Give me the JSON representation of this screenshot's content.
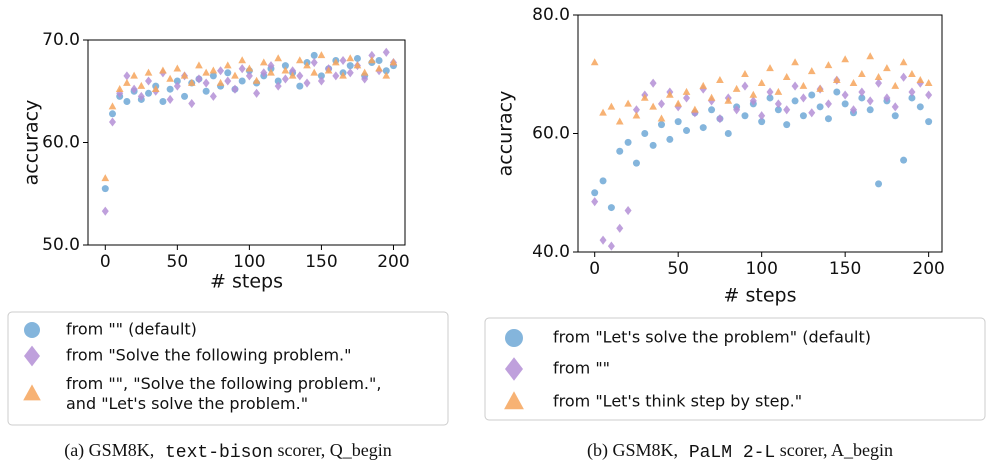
{
  "chart_data": [
    {
      "type": "scatter",
      "ylabel": "accuracy",
      "xlabel": "# steps",
      "caption": {
        "prefix": "(a) GSM8K,",
        "model": "text-bison",
        "suffix": "scorer, Q_begin"
      },
      "xlim": [
        -12,
        208
      ],
      "ylim": [
        50,
        70
      ],
      "xticks": [
        0,
        50,
        100,
        150,
        200
      ],
      "yticks": [
        {
          "value": 50,
          "label": "50.0"
        },
        {
          "value": 60,
          "label": "60.0"
        },
        {
          "value": 70,
          "label": "70.0"
        }
      ],
      "x": [
        0,
        5,
        10,
        15,
        20,
        25,
        30,
        35,
        40,
        45,
        50,
        55,
        60,
        65,
        70,
        75,
        80,
        85,
        90,
        95,
        100,
        105,
        110,
        115,
        120,
        125,
        130,
        135,
        140,
        145,
        150,
        155,
        160,
        165,
        170,
        175,
        180,
        185,
        190,
        195,
        200
      ],
      "series": [
        {
          "name": "from \"\" (default)",
          "color": "#6fa8d6",
          "marker": "circle",
          "values": [
            55.5,
            62.8,
            64.5,
            64.0,
            65.0,
            64.2,
            64.8,
            65.5,
            64.0,
            65.2,
            66.0,
            64.5,
            65.8,
            66.2,
            65.0,
            66.5,
            65.5,
            66.8,
            65.2,
            66.0,
            67.0,
            65.8,
            66.5,
            67.2,
            66.0,
            67.5,
            66.8,
            65.5,
            67.8,
            68.5,
            66.5,
            67.2,
            68.0,
            66.8,
            67.5,
            68.2,
            66.5,
            67.8,
            68.0,
            67.0,
            67.5
          ]
        },
        {
          "name": "from \"Solve the following problem.\"",
          "color": "#b48fd6",
          "marker": "diamond",
          "values": [
            53.3,
            62.0,
            64.8,
            66.5,
            65.2,
            64.5,
            66.0,
            65.0,
            66.8,
            64.2,
            65.5,
            66.5,
            63.8,
            66.2,
            65.8,
            64.5,
            67.0,
            66.0,
            65.2,
            67.2,
            66.5,
            64.8,
            66.8,
            67.5,
            65.5,
            66.2,
            67.0,
            66.5,
            65.8,
            67.8,
            66.0,
            67.2,
            66.5,
            68.0,
            66.8,
            67.5,
            66.2,
            68.5,
            67.0,
            68.8,
            67.8
          ]
        },
        {
          "name": "from \"\", \"Solve the following problem.\",\nand \"Let's solve the problem.\"",
          "color": "#f6a45c",
          "marker": "triangle",
          "values": [
            56.5,
            63.5,
            65.2,
            65.8,
            66.5,
            65.5,
            66.8,
            65.2,
            67.0,
            66.2,
            67.2,
            66.5,
            65.8,
            67.5,
            66.8,
            67.0,
            65.8,
            67.5,
            66.5,
            68.0,
            67.2,
            66.0,
            67.8,
            66.8,
            68.2,
            67.0,
            66.5,
            68.0,
            67.5,
            66.8,
            68.5,
            67.0,
            67.8,
            66.5,
            68.2,
            67.5,
            66.8,
            68.0,
            67.2,
            66.5,
            67.8
          ]
        }
      ]
    },
    {
      "type": "scatter",
      "ylabel": "accuracy",
      "xlabel": "# steps",
      "caption": {
        "prefix": "(b) GSM8K,",
        "model": "PaLM 2-L",
        "suffix": "scorer, A_begin"
      },
      "xlim": [
        -10,
        208
      ],
      "ylim": [
        40,
        80
      ],
      "xticks": [
        0,
        50,
        100,
        150,
        200
      ],
      "yticks": [
        {
          "value": 40,
          "label": "40.0"
        },
        {
          "value": 60,
          "label": "60.0"
        },
        {
          "value": 80,
          "label": "80.0"
        }
      ],
      "x": [
        0,
        5,
        10,
        15,
        20,
        25,
        30,
        35,
        40,
        45,
        50,
        55,
        60,
        65,
        70,
        75,
        80,
        85,
        90,
        95,
        100,
        105,
        110,
        115,
        120,
        125,
        130,
        135,
        140,
        145,
        150,
        155,
        160,
        165,
        170,
        175,
        180,
        185,
        190,
        195,
        200
      ],
      "series": [
        {
          "name": "from \"Let's solve the problem\" (default)",
          "color": "#6fa8d6",
          "marker": "circle",
          "values": [
            50,
            52,
            47.5,
            57,
            58.5,
            55,
            60,
            58,
            61.5,
            59,
            62,
            60.5,
            63.5,
            61,
            64,
            62.5,
            60,
            64.5,
            63,
            65,
            62,
            66,
            64,
            61.5,
            65.5,
            63,
            66.5,
            64.5,
            62.5,
            67,
            65,
            63.5,
            66,
            64,
            51.5,
            65.5,
            63,
            55.5,
            66,
            64.5,
            62
          ]
        },
        {
          "name": "from \"\"",
          "color": "#b48fd6",
          "marker": "diamond",
          "values": [
            48.5,
            42,
            41,
            44,
            47,
            64,
            66.5,
            68.5,
            65,
            67,
            64.5,
            66,
            63.5,
            67.5,
            65.5,
            62.5,
            66,
            64,
            68,
            65.5,
            63,
            67,
            65,
            64,
            68,
            66,
            63.5,
            67.5,
            65,
            69,
            66.5,
            64,
            67,
            65.5,
            68.5,
            66,
            64.5,
            69.5,
            67,
            68.5,
            66.5
          ]
        },
        {
          "name": "from \"Let's think step by step.\"",
          "color": "#f6a45c",
          "marker": "triangle",
          "values": [
            72,
            63.5,
            64.5,
            62,
            65,
            63,
            66,
            64.5,
            62.5,
            66.5,
            65,
            67,
            64,
            68,
            66,
            69,
            65.5,
            67.5,
            70,
            66.5,
            68.5,
            71,
            67,
            69.5,
            72,
            68,
            70.5,
            67.5,
            71.5,
            69,
            72.5,
            68.5,
            70,
            73,
            69.5,
            71,
            68,
            72,
            70,
            69,
            68.5
          ]
        }
      ]
    }
  ]
}
